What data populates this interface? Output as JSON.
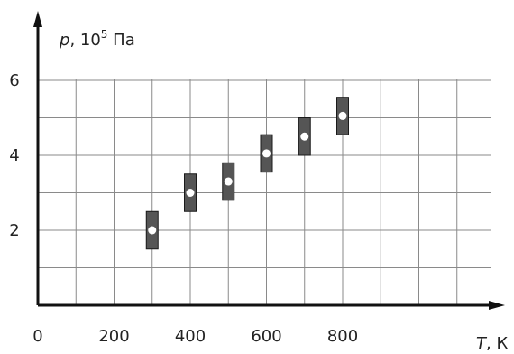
{
  "chart_data": {
    "type": "scatter",
    "title": "",
    "ylabel": {
      "symbol": "p",
      "text": ", 10",
      "exponent": "5",
      "unit": " Па"
    },
    "xlabel": {
      "symbol": "T",
      "text": ", К"
    },
    "xlim": [
      0,
      1200
    ],
    "ylim": [
      0,
      6.6
    ],
    "x_ticks": [
      "0",
      "200",
      "400",
      "600",
      "800"
    ],
    "x_tick_values": [
      0,
      200,
      400,
      600,
      800
    ],
    "y_ticks": [
      "2",
      "4",
      "6"
    ],
    "y_tick_values": [
      2,
      4,
      6
    ],
    "grid": true,
    "grid_step_x": 100,
    "grid_step_y": 1,
    "series": [
      {
        "points": [
          {
            "x": 300,
            "y": 2.0,
            "err_low": 1.5,
            "err_high": 2.5
          },
          {
            "x": 400,
            "y": 3.0,
            "err_low": 2.5,
            "err_high": 3.5
          },
          {
            "x": 500,
            "y": 3.3,
            "err_low": 2.8,
            "err_high": 3.8
          },
          {
            "x": 600,
            "y": 4.05,
            "err_low": 3.55,
            "err_high": 4.55
          },
          {
            "x": 700,
            "y": 4.5,
            "err_low": 4.0,
            "err_high": 5.0
          },
          {
            "x": 800,
            "y": 5.05,
            "err_low": 4.55,
            "err_high": 5.55
          }
        ]
      }
    ],
    "colors": {
      "axis": "#111111",
      "grid": "#8a8a8a",
      "error_box": "#555555",
      "error_box_border": "#1a1a1a",
      "point": "#ffffff"
    }
  }
}
